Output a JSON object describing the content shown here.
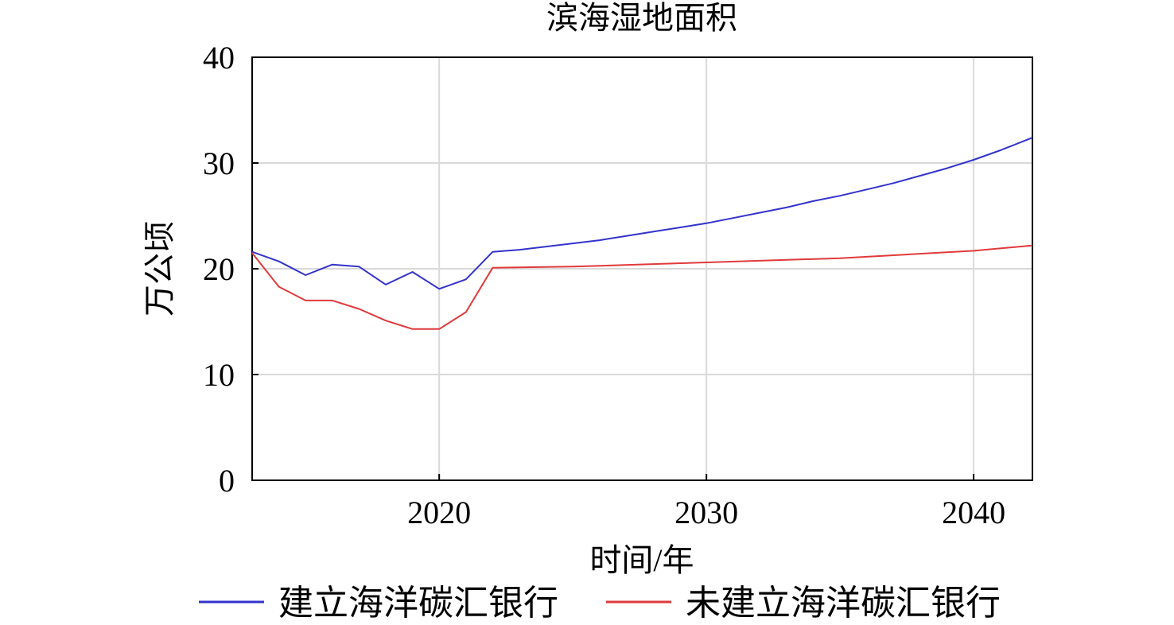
{
  "chart_data": {
    "type": "line",
    "title": "滨海湿地面积",
    "xlabel": "时间/年",
    "ylabel": "万公顷",
    "xlim": [
      2013,
      2042.2
    ],
    "ylim": [
      0,
      40
    ],
    "xticks": [
      "2020",
      "2030",
      "2040"
    ],
    "yticks": [
      "0",
      "10",
      "20",
      "30",
      "40"
    ],
    "grid": true,
    "legend_position": "bottom",
    "series": [
      {
        "name": "建立海洋碳汇银行",
        "color": "#3333cc",
        "x": [
          2013,
          2014,
          2015,
          2016,
          2017,
          2018,
          2019,
          2020,
          2021,
          2022,
          2023,
          2024,
          2025,
          2026,
          2027,
          2028,
          2029,
          2030,
          2031,
          2032,
          2033,
          2034,
          2035,
          2036,
          2037,
          2038,
          2039,
          2040,
          2041,
          2042.2
        ],
        "y": [
          21.6,
          20.7,
          19.4,
          20.4,
          20.2,
          18.5,
          19.7,
          18.1,
          19.0,
          21.6,
          21.8,
          22.1,
          22.4,
          22.7,
          23.1,
          23.5,
          23.9,
          24.3,
          24.8,
          25.3,
          25.8,
          26.4,
          26.9,
          27.5,
          28.1,
          28.8,
          29.5,
          30.3,
          31.2,
          32.4
        ]
      },
      {
        "name": "未建立海洋碳汇银行",
        "color": "#e03a3a",
        "x": [
          2013,
          2014,
          2015,
          2016,
          2017,
          2018,
          2019,
          2020,
          2021,
          2022,
          2025,
          2030,
          2035,
          2040,
          2042.2
        ],
        "y": [
          21.5,
          18.3,
          17.0,
          17.0,
          16.2,
          15.1,
          14.3,
          14.3,
          15.9,
          20.1,
          20.2,
          20.6,
          21.0,
          21.7,
          22.2
        ]
      }
    ]
  }
}
